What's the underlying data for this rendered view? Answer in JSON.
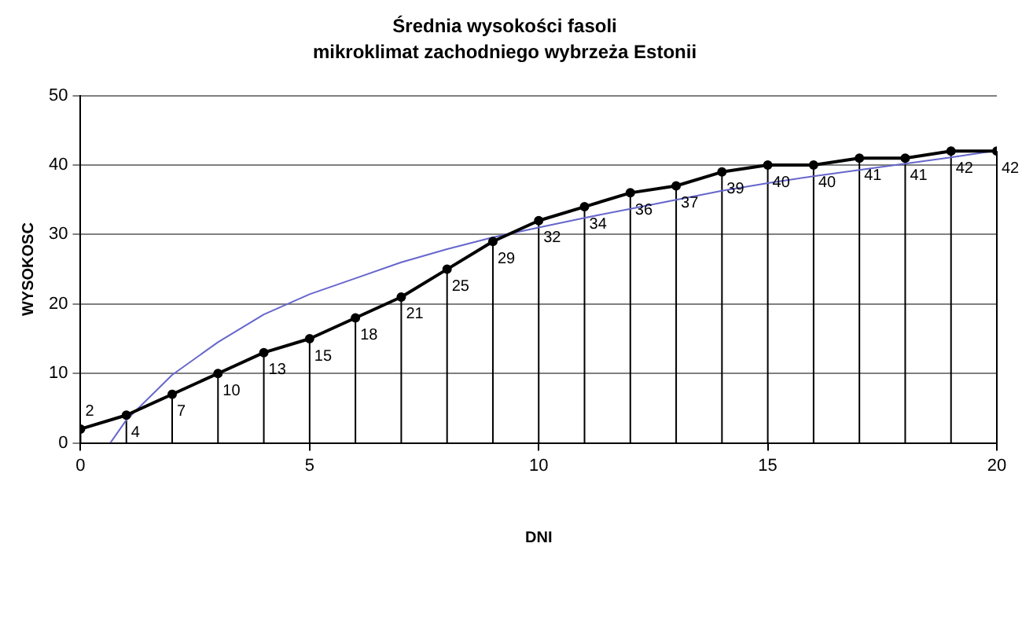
{
  "chart_data": {
    "type": "line",
    "title": "Średnia wysokości fasoli",
    "subtitle": "mikroklimat zachodniego wybrzeża Estonii",
    "xlabel": "DNI",
    "ylabel": "WYSOKOSC",
    "x": [
      0,
      1,
      2,
      3,
      4,
      5,
      6,
      7,
      8,
      9,
      10,
      11,
      12,
      13,
      14,
      15,
      16,
      17,
      18,
      19,
      20
    ],
    "series": [
      {
        "color": "#000000",
        "values": [
          2,
          4,
          7,
          10,
          13,
          15,
          18,
          21,
          25,
          29,
          32,
          34,
          36,
          37,
          39,
          40,
          40,
          41,
          41,
          42,
          42
        ],
        "marker": "circle",
        "value_labels": [
          "2",
          "4",
          "7",
          "10",
          "13",
          "15",
          "18",
          "21",
          "25",
          "29",
          "32",
          "34",
          "36",
          "37",
          "39",
          "40",
          "40",
          "41",
          "41",
          "42",
          "42"
        ]
      },
      {
        "color": "#6666cc",
        "marker": "none",
        "x": [
          0.65,
          1,
          2,
          3,
          4,
          5,
          6,
          7,
          8,
          9,
          10,
          11,
          12,
          13,
          14,
          15,
          16,
          17,
          18,
          19,
          20
        ],
        "values": [
          0,
          3.3,
          9.8,
          14.5,
          18.5,
          21.4,
          23.7,
          26,
          27.9,
          29.6,
          31,
          32.4,
          33.7,
          35,
          36.3,
          37.4,
          38.4,
          39.3,
          40.2,
          41.1,
          42.1
        ]
      }
    ],
    "xlim": [
      0,
      20
    ],
    "xticks": [
      0,
      5,
      10,
      15,
      20
    ],
    "ylim": [
      0,
      50
    ],
    "yticks": [
      0,
      10,
      20,
      30,
      40,
      50
    ],
    "grid": "y",
    "legend": false
  }
}
